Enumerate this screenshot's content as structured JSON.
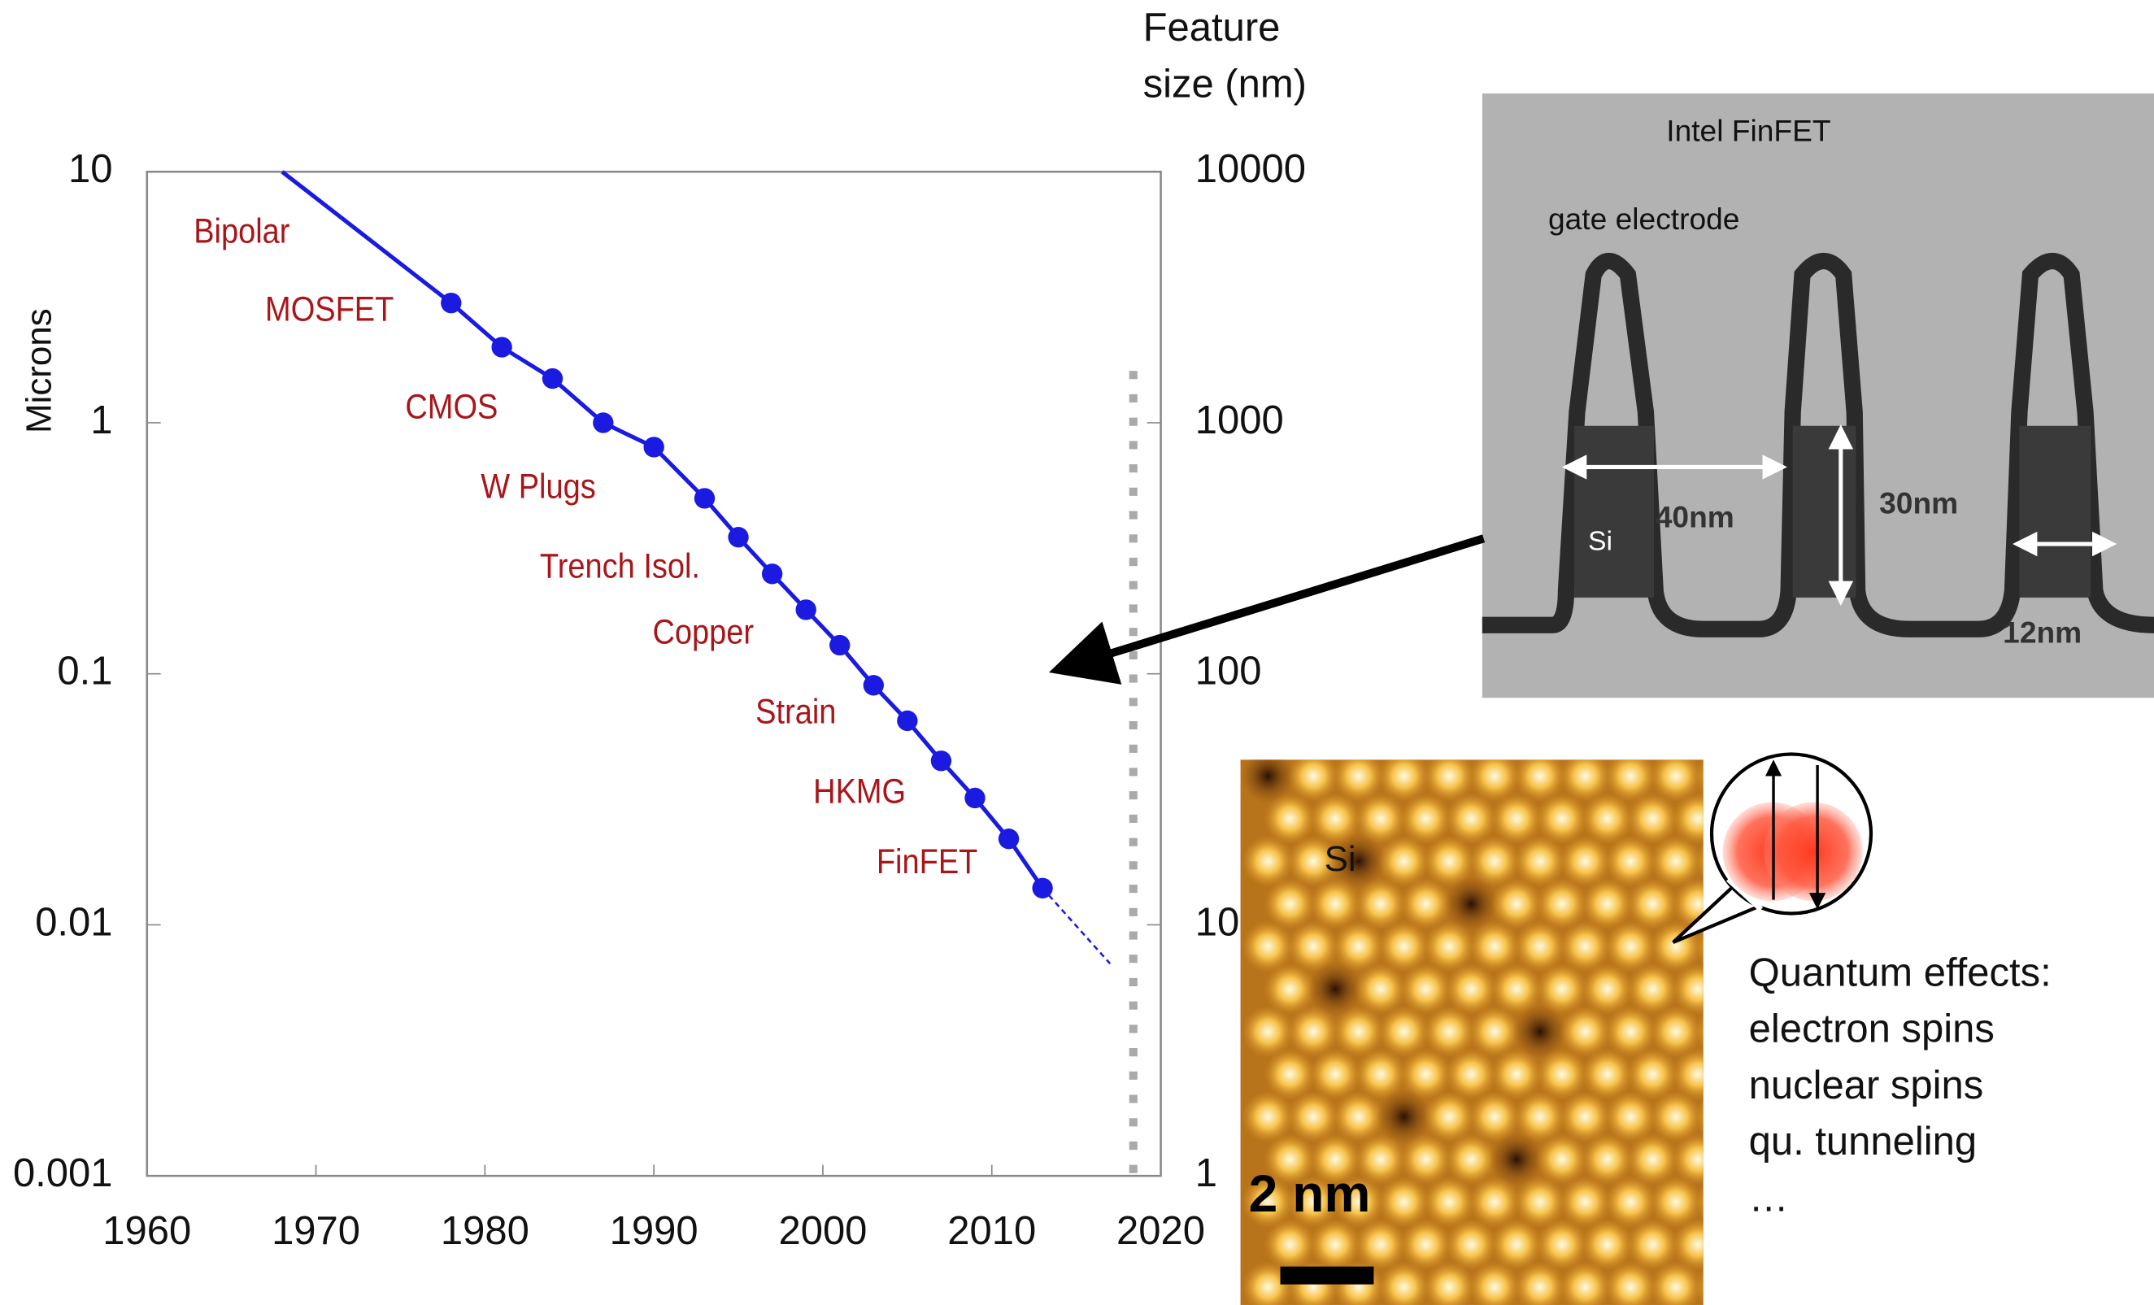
{
  "chart_data": {
    "type": "line",
    "ylabel": "Microns",
    "y2label": "Feature size (nm)",
    "xlim": [
      1960,
      2020
    ],
    "xticks": [
      1960,
      1970,
      1980,
      1990,
      2000,
      2010,
      2020
    ],
    "ylim": [
      0.001,
      10
    ],
    "yticks": [
      0.001,
      0.01,
      0.1,
      1,
      10
    ],
    "yscale": "log",
    "y2lim": [
      1,
      10000
    ],
    "y2ticks": [
      1,
      10,
      100,
      1000,
      10000
    ],
    "y2scale": "log",
    "series": [
      {
        "color": "#1a1ae0",
        "style": "solid",
        "markers": false,
        "x": [
          1968,
          1978
        ],
        "values": [
          10,
          3
        ]
      },
      {
        "color": "#1a1ae0",
        "style": "solid",
        "markers": true,
        "x": [
          1978,
          1981,
          1984,
          1987,
          1990,
          1993,
          1995,
          1997,
          1999,
          2001,
          2003,
          2005,
          2007,
          2009,
          2011,
          2013
        ],
        "values": [
          3,
          2,
          1.5,
          1,
          0.8,
          0.5,
          0.35,
          0.25,
          0.18,
          0.13,
          0.09,
          0.065,
          0.045,
          0.032,
          0.022,
          0.014
        ]
      },
      {
        "color": "#1a1ae0",
        "style": "dashed",
        "markers": false,
        "x": [
          2013,
          2017
        ],
        "values": [
          0.014,
          0.007
        ]
      }
    ],
    "annotations": [
      "Bipolar",
      "MOSFET",
      "CMOS",
      "W Plugs",
      "Trench Isol.",
      "Copper",
      "Strain",
      "HKMG",
      "FinFET"
    ]
  },
  "finfet_image": {
    "title": "Intel FinFET",
    "gate_label": "gate electrode",
    "si_label": "Si",
    "width_label": "40nm",
    "height_label": "30nm",
    "fin_label": "12nm"
  },
  "stm_image": {
    "si_label": "Si",
    "scale_label": "2 nm"
  },
  "quantum_text": [
    "Quantum effects:",
    "electron spins",
    "nuclear spins",
    "qu. tunneling",
    "…"
  ]
}
